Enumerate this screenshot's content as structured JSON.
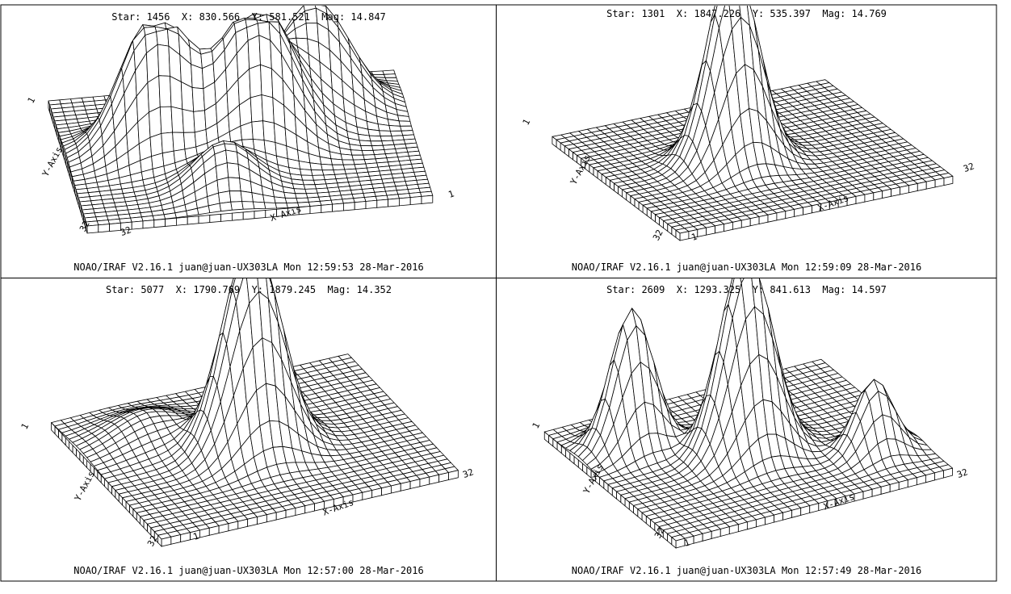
{
  "panels": [
    {
      "title": "Star: 1456  X: 830.566  Y: 581.521  Mag: 14.847",
      "footer": "NOAO/IRAF V2.16.1 juan@juan-UX303LA Mon 12:59:53 28-Mar-2016",
      "x_axis_label": "X-Axis",
      "y_axis_label": "Y-Axis",
      "x_ticks": [
        "32",
        "1"
      ],
      "y_ticks": [
        "1",
        "32"
      ]
    },
    {
      "title": "Star: 1301  X: 1847.226  Y: 535.397  Mag: 14.769",
      "footer": "NOAO/IRAF V2.16.1 juan@juan-UX303LA Mon 12:59:09 28-Mar-2016",
      "x_axis_label": "X-Axis",
      "y_axis_label": "Y-Axis",
      "x_ticks": [
        "1",
        "32"
      ],
      "y_ticks": [
        "1",
        "32"
      ]
    },
    {
      "title": "Star: 5077  X: 1790.769  Y: 1879.245  Mag: 14.352",
      "footer": "NOAO/IRAF V2.16.1 juan@juan-UX303LA Mon 12:57:00 28-Mar-2016",
      "x_axis_label": "X-Axis",
      "y_axis_label": "Y-Axis",
      "x_ticks": [
        "1",
        "32"
      ],
      "y_ticks": [
        "1",
        "32"
      ]
    },
    {
      "title": "Star: 2609  X: 1293.325  Y: 841.613  Mag: 14.597",
      "footer": "NOAO/IRAF V2.16.1 juan@juan-UX303LA Mon 12:57:49 28-Mar-2016",
      "x_axis_label": "X-Axis",
      "y_axis_label": "Y-Axis",
      "x_ticks": [
        "1",
        "32"
      ],
      "y_ticks": [
        "1",
        "32"
      ]
    }
  ],
  "chart_data": [
    {
      "type": "surface",
      "grid": [
        32,
        32
      ],
      "x_range": [
        1,
        32
      ],
      "y_range": [
        1,
        32
      ],
      "peaks": [
        {
          "x": 24,
          "y": 24,
          "height": 0.7,
          "width": 3.2,
          "saturate": 1.0
        },
        {
          "x": 18,
          "y": 17,
          "height": 0.92,
          "width": 3.2,
          "saturate": 0.88
        },
        {
          "x": 9,
          "y": 18,
          "height": 0.9,
          "width": 3.0,
          "saturate": 0.88
        },
        {
          "x": 14,
          "y": 7,
          "height": 0.3,
          "width": 2.6,
          "saturate": 1.0
        }
      ]
    },
    {
      "type": "surface",
      "grid": [
        32,
        32
      ],
      "x_range": [
        1,
        32
      ],
      "y_range": [
        1,
        32
      ],
      "peaks": [
        {
          "x": 14,
          "y": 16,
          "height": 1.3,
          "width": 2.7,
          "saturate": 0.98
        }
      ]
    },
    {
      "type": "surface",
      "grid": [
        32,
        32
      ],
      "x_range": [
        1,
        32
      ],
      "y_range": [
        1,
        32
      ],
      "peaks": [
        {
          "x": 16,
          "y": 16,
          "height": 1.3,
          "width": 2.9,
          "saturate": 0.95
        },
        {
          "x": 8,
          "y": 24,
          "height": 0.15,
          "width": 3.5,
          "saturate": 1.0
        }
      ]
    },
    {
      "type": "surface",
      "grid": [
        32,
        32
      ],
      "x_range": [
        1,
        32
      ],
      "y_range": [
        1,
        32
      ],
      "peaks": [
        {
          "x": 16,
          "y": 16,
          "height": 1.25,
          "width": 2.7,
          "saturate": 0.93
        },
        {
          "x": 7,
          "y": 24,
          "height": 0.85,
          "width": 2.2,
          "saturate": 1.0
        },
        {
          "x": 27,
          "y": 9,
          "height": 0.45,
          "width": 2.0,
          "saturate": 1.0
        }
      ]
    }
  ]
}
